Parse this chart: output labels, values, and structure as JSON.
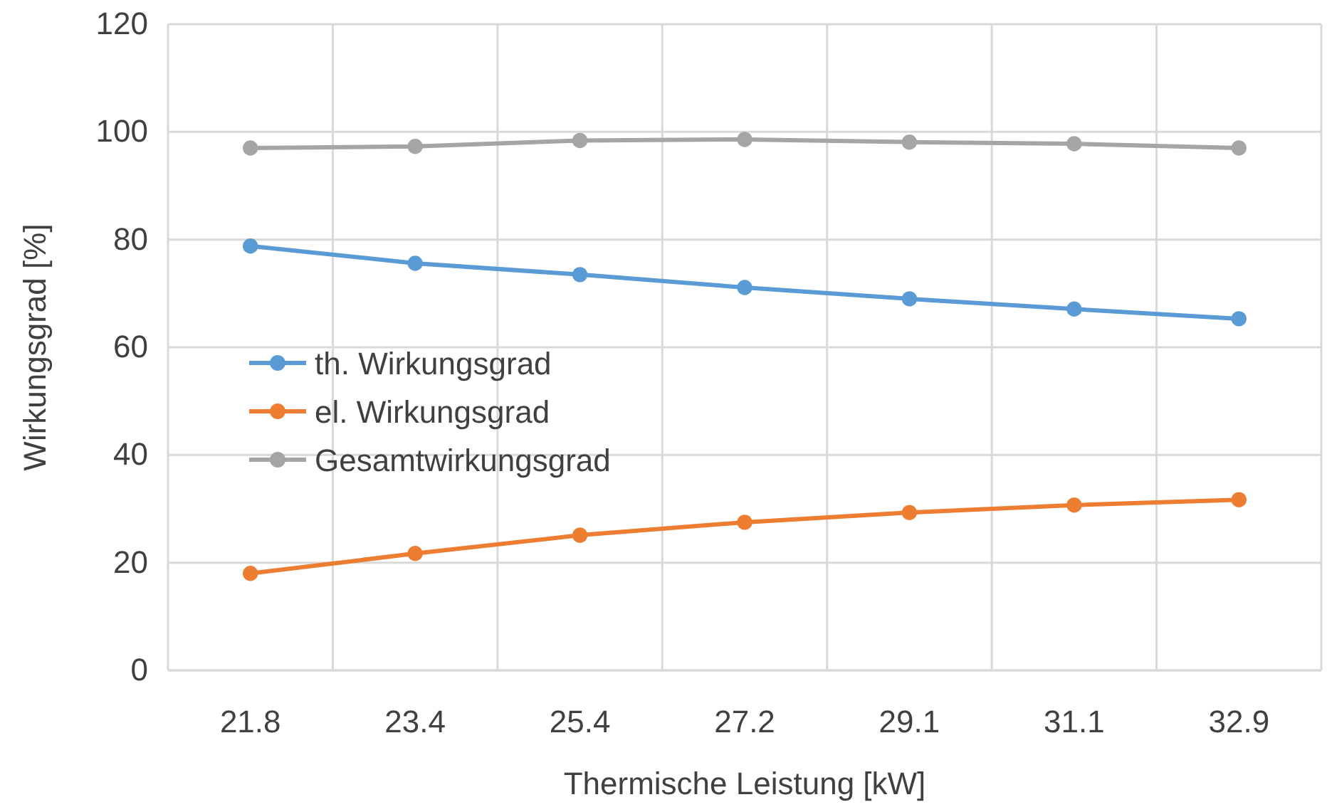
{
  "chart_data": {
    "type": "line",
    "xlabel": "Thermische Leistung  [kW]",
    "ylabel": "Wirkungsgrad [%]",
    "categories": [
      "21.8",
      "23.4",
      "25.4",
      "27.2",
      "29.1",
      "31.1",
      "32.9"
    ],
    "series": [
      {
        "name": "th. Wirkungsgrad",
        "color": "#5b9bd5",
        "values": [
          78.8,
          75.6,
          73.5,
          71.1,
          69.0,
          67.1,
          65.3
        ]
      },
      {
        "name": "el. Wirkungsgrad",
        "color": "#ed7d31",
        "values": [
          18.0,
          21.7,
          25.1,
          27.5,
          29.3,
          30.7,
          31.7
        ]
      },
      {
        "name": "Gesamtwirkungsgrad",
        "color": "#a5a5a5",
        "values": [
          97.0,
          97.3,
          98.4,
          98.6,
          98.1,
          97.8,
          97.0
        ]
      }
    ],
    "ylim": [
      0,
      120
    ],
    "yticks": [
      0,
      20,
      40,
      60,
      80,
      100,
      120
    ],
    "grid": true,
    "legend": "left",
    "marker": "circle",
    "line_style": "solid"
  }
}
